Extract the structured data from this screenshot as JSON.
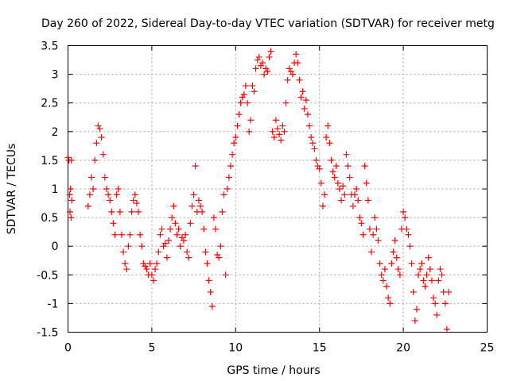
{
  "chart_data": {
    "type": "scatter",
    "title": "Day 260 of 2022, Sidereal Day-to-day VTEC variation (SDTVAR) for receiver metg",
    "xlabel": "GPS time / hours",
    "ylabel": "SDTVAR / TECUs",
    "xlim": [
      0,
      25
    ],
    "ylim": [
      -1.5,
      3.5
    ],
    "x_ticks": [
      0,
      5,
      10,
      15,
      20,
      25
    ],
    "x_tick_labels": [
      "0",
      "5",
      "10",
      "15",
      "20",
      "25"
    ],
    "y_ticks": [
      -1.5,
      -1,
      -0.5,
      0,
      0.5,
      1,
      1.5,
      2,
      2.5,
      3,
      3.5
    ],
    "y_tick_labels": [
      "-1.5",
      "-1",
      "-0.5",
      "0",
      "0.5",
      "1",
      "1.5",
      "2",
      "2.5",
      "3",
      "3.5"
    ],
    "grid": true,
    "marker": "+",
    "marker_color": "#ff0000",
    "series": [
      {
        "name": "SDTVAR",
        "points": [
          [
            0.0,
            1.55
          ],
          [
            0.05,
            1.5
          ],
          [
            0.1,
            0.9
          ],
          [
            0.12,
            0.6
          ],
          [
            0.15,
            1.0
          ],
          [
            0.18,
            0.5
          ],
          [
            0.2,
            1.5
          ],
          [
            0.22,
            0.8
          ],
          [
            1.2,
            0.7
          ],
          [
            1.3,
            0.9
          ],
          [
            1.4,
            1.2
          ],
          [
            1.5,
            1.0
          ],
          [
            1.6,
            1.5
          ],
          [
            1.7,
            1.8
          ],
          [
            1.8,
            2.1
          ],
          [
            1.9,
            2.05
          ],
          [
            2.0,
            1.9
          ],
          [
            2.1,
            1.6
          ],
          [
            2.2,
            1.2
          ],
          [
            2.3,
            1.0
          ],
          [
            2.4,
            0.9
          ],
          [
            2.5,
            0.8
          ],
          [
            2.6,
            0.6
          ],
          [
            2.7,
            0.4
          ],
          [
            2.8,
            0.2
          ],
          [
            2.9,
            0.9
          ],
          [
            3.0,
            1.0
          ],
          [
            3.1,
            0.6
          ],
          [
            3.2,
            0.2
          ],
          [
            3.3,
            -0.1
          ],
          [
            3.4,
            -0.3
          ],
          [
            3.5,
            -0.4
          ],
          [
            3.6,
            0.0
          ],
          [
            3.7,
            0.2
          ],
          [
            3.8,
            0.6
          ],
          [
            3.9,
            0.8
          ],
          [
            4.0,
            0.9
          ],
          [
            4.1,
            0.75
          ],
          [
            4.2,
            0.6
          ],
          [
            4.3,
            0.2
          ],
          [
            4.4,
            0.0
          ],
          [
            4.5,
            -0.3
          ],
          [
            4.6,
            -0.35
          ],
          [
            4.7,
            -0.4
          ],
          [
            4.8,
            -0.5
          ],
          [
            4.9,
            -0.3
          ],
          [
            5.0,
            -0.5
          ],
          [
            5.1,
            -0.6
          ],
          [
            5.2,
            -0.4
          ],
          [
            5.3,
            -0.3
          ],
          [
            5.4,
            -0.1
          ],
          [
            5.5,
            0.2
          ],
          [
            5.6,
            0.3
          ],
          [
            5.7,
            0.0
          ],
          [
            5.8,
            0.05
          ],
          [
            5.9,
            -0.2
          ],
          [
            6.0,
            0.1
          ],
          [
            6.1,
            0.3
          ],
          [
            6.2,
            0.5
          ],
          [
            6.3,
            0.7
          ],
          [
            6.4,
            0.4
          ],
          [
            6.5,
            0.2
          ],
          [
            6.6,
            0.3
          ],
          [
            6.7,
            0.0
          ],
          [
            6.8,
            0.15
          ],
          [
            6.9,
            0.1
          ],
          [
            7.0,
            0.2
          ],
          [
            7.1,
            -0.1
          ],
          [
            7.2,
            -0.2
          ],
          [
            7.3,
            0.4
          ],
          [
            7.4,
            0.7
          ],
          [
            7.5,
            0.9
          ],
          [
            7.6,
            1.4
          ],
          [
            7.7,
            0.6
          ],
          [
            7.8,
            0.8
          ],
          [
            7.9,
            0.7
          ],
          [
            8.0,
            0.6
          ],
          [
            8.1,
            0.3
          ],
          [
            8.2,
            -0.1
          ],
          [
            8.3,
            -0.3
          ],
          [
            8.4,
            -0.6
          ],
          [
            8.5,
            -0.8
          ],
          [
            8.6,
            -1.05
          ],
          [
            8.7,
            0.5
          ],
          [
            8.8,
            0.3
          ],
          [
            8.9,
            -0.15
          ],
          [
            9.0,
            -0.2
          ],
          [
            9.1,
            0.0
          ],
          [
            9.2,
            0.6
          ],
          [
            9.3,
            0.9
          ],
          [
            9.4,
            -0.5
          ],
          [
            9.5,
            1.0
          ],
          [
            9.6,
            1.2
          ],
          [
            9.7,
            1.4
          ],
          [
            9.8,
            1.6
          ],
          [
            9.9,
            1.8
          ],
          [
            10.0,
            1.9
          ],
          [
            10.1,
            2.1
          ],
          [
            10.2,
            2.3
          ],
          [
            10.3,
            2.5
          ],
          [
            10.4,
            2.6
          ],
          [
            10.5,
            2.65
          ],
          [
            10.6,
            2.8
          ],
          [
            10.7,
            2.5
          ],
          [
            10.8,
            2.0
          ],
          [
            10.9,
            2.2
          ],
          [
            11.0,
            2.8
          ],
          [
            11.1,
            2.7
          ],
          [
            11.2,
            3.1
          ],
          [
            11.3,
            3.25
          ],
          [
            11.4,
            3.3
          ],
          [
            11.5,
            3.15
          ],
          [
            11.6,
            3.2
          ],
          [
            11.7,
            3.0
          ],
          [
            11.8,
            3.1
          ],
          [
            11.9,
            3.05
          ],
          [
            12.0,
            3.3
          ],
          [
            12.1,
            3.4
          ],
          [
            12.2,
            2.0
          ],
          [
            12.3,
            1.9
          ],
          [
            12.4,
            2.2
          ],
          [
            12.5,
            2.05
          ],
          [
            12.6,
            1.95
          ],
          [
            12.7,
            1.85
          ],
          [
            12.8,
            2.1
          ],
          [
            12.9,
            2.0
          ],
          [
            13.0,
            2.5
          ],
          [
            13.1,
            2.9
          ],
          [
            13.2,
            3.1
          ],
          [
            13.3,
            3.05
          ],
          [
            13.4,
            3.0
          ],
          [
            13.5,
            3.2
          ],
          [
            13.6,
            3.35
          ],
          [
            13.7,
            3.2
          ],
          [
            13.8,
            2.9
          ],
          [
            13.9,
            2.6
          ],
          [
            14.0,
            2.7
          ],
          [
            14.1,
            2.4
          ],
          [
            14.2,
            2.55
          ],
          [
            14.3,
            2.3
          ],
          [
            14.4,
            2.1
          ],
          [
            14.5,
            1.9
          ],
          [
            14.6,
            1.8
          ],
          [
            14.7,
            1.7
          ],
          [
            14.8,
            1.5
          ],
          [
            14.9,
            1.4
          ],
          [
            15.0,
            1.35
          ],
          [
            15.1,
            1.1
          ],
          [
            15.2,
            0.7
          ],
          [
            15.3,
            0.9
          ],
          [
            15.4,
            1.9
          ],
          [
            15.5,
            2.1
          ],
          [
            15.6,
            1.8
          ],
          [
            15.7,
            1.5
          ],
          [
            15.8,
            1.3
          ],
          [
            15.9,
            1.2
          ],
          [
            16.0,
            1.4
          ],
          [
            16.1,
            1.1
          ],
          [
            16.2,
            1.0
          ],
          [
            16.3,
            0.8
          ],
          [
            16.4,
            1.05
          ],
          [
            16.5,
            0.9
          ],
          [
            16.6,
            1.6
          ],
          [
            16.7,
            1.4
          ],
          [
            16.8,
            1.2
          ],
          [
            16.9,
            0.9
          ],
          [
            17.0,
            0.7
          ],
          [
            17.1,
            0.9
          ],
          [
            17.2,
            1.0
          ],
          [
            17.3,
            0.8
          ],
          [
            17.4,
            0.5
          ],
          [
            17.5,
            0.4
          ],
          [
            17.6,
            0.2
          ],
          [
            17.7,
            1.4
          ],
          [
            17.8,
            1.1
          ],
          [
            17.9,
            0.8
          ],
          [
            18.0,
            0.3
          ],
          [
            18.1,
            -0.1
          ],
          [
            18.2,
            0.2
          ],
          [
            18.3,
            0.5
          ],
          [
            18.4,
            0.3
          ],
          [
            18.5,
            0.1
          ],
          [
            18.6,
            -0.3
          ],
          [
            18.7,
            -0.5
          ],
          [
            18.8,
            -0.6
          ],
          [
            18.9,
            -0.4
          ],
          [
            19.0,
            -0.7
          ],
          [
            19.1,
            -0.9
          ],
          [
            19.2,
            -1.0
          ],
          [
            19.3,
            -0.3
          ],
          [
            19.4,
            -0.1
          ],
          [
            19.5,
            0.1
          ],
          [
            19.6,
            -0.2
          ],
          [
            19.7,
            -0.4
          ],
          [
            19.8,
            -0.5
          ],
          [
            19.9,
            0.3
          ],
          [
            20.0,
            0.6
          ],
          [
            20.1,
            0.5
          ],
          [
            20.2,
            0.3
          ],
          [
            20.3,
            0.2
          ],
          [
            20.4,
            0.0
          ],
          [
            20.5,
            -0.3
          ],
          [
            20.6,
            -0.8
          ],
          [
            20.7,
            -1.3
          ],
          [
            20.8,
            -1.1
          ],
          [
            20.9,
            -0.5
          ],
          [
            21.0,
            -0.4
          ],
          [
            21.1,
            -0.3
          ],
          [
            21.2,
            -0.6
          ],
          [
            21.3,
            -0.7
          ],
          [
            21.4,
            -0.5
          ],
          [
            21.5,
            -0.2
          ],
          [
            21.6,
            -0.4
          ],
          [
            21.7,
            -0.6
          ],
          [
            21.8,
            -0.9
          ],
          [
            21.9,
            -1.0
          ],
          [
            22.0,
            -1.2
          ],
          [
            22.1,
            -0.6
          ],
          [
            22.2,
            -0.4
          ],
          [
            22.3,
            -0.5
          ],
          [
            22.4,
            -0.8
          ],
          [
            22.5,
            -1.0
          ],
          [
            22.6,
            -1.45
          ],
          [
            22.7,
            -0.8
          ]
        ]
      }
    ]
  }
}
